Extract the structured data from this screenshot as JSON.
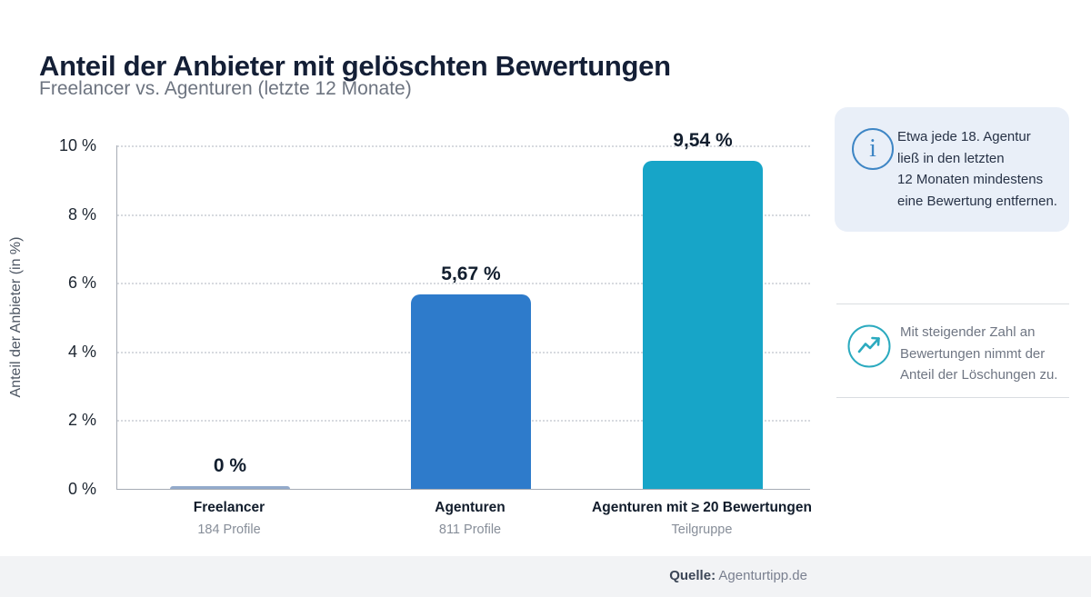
{
  "header": {
    "title": "Anteil der Anbieter mit gelöschten Bewertungen",
    "subtitle": "Freelancer vs. Agenturen (letzte 12 Monate)"
  },
  "chart_data": {
    "type": "bar",
    "title": "Anteil der Anbieter mit gelöschten Bewertungen",
    "subtitle": "Freelancer vs. Agenturen (letzte 12 Monate)",
    "ylabel": "Anteil der Anbieter (in %)",
    "xlabel": "",
    "ylim": [
      0,
      10
    ],
    "grid": "horizontal dotted",
    "legend": "none",
    "yticks": [
      "10 %",
      "8 %",
      "6 %",
      "4 %",
      "2 %",
      "0 %"
    ],
    "categories": [
      "Freelancer",
      "Agenturen",
      "Agenturen mit ≥ 20 Bewertungen"
    ],
    "sublabels": [
      "184 Profile",
      "811 Profile",
      "Teilgruppe"
    ],
    "values": [
      0,
      5.67,
      9.54
    ],
    "value_labels": [
      "0 %",
      "5,67 %",
      "9,54 %"
    ],
    "bar_colors": [
      "#93AACB",
      "#2E7BCB",
      "#17A5C8"
    ]
  },
  "annotations": {
    "info_card": {
      "icon": "info-icon",
      "icon_glyph": "i",
      "icon_color": "#3E86C5",
      "background": "#E9EFF8",
      "lines": {
        "0": "Etwa jede 18. Agentur",
        "1": "ließ in den letzten",
        "2": "12 Monaten mindestens",
        "3": "eine Bewertung entfernen."
      }
    },
    "trend_note": {
      "icon": "trend-up-icon",
      "icon_color": "#2BAABF",
      "lines": {
        "0": "Mit steigender Zahl an",
        "1": "Bewertungen nimmt der",
        "2": "Anteil der Löschungen zu."
      }
    }
  },
  "footer": {
    "source_label": "Quelle:",
    "source_value": "Agenturtipp.de"
  }
}
